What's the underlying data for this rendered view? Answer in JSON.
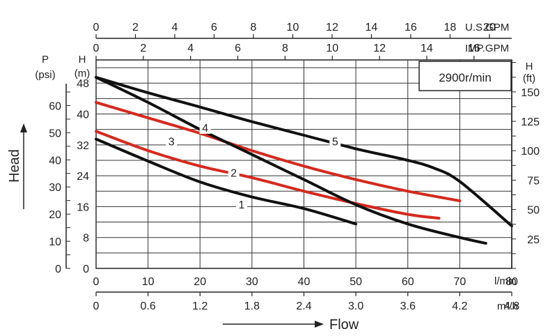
{
  "chart_data": {
    "type": "line",
    "annotation": "2900r/min",
    "axes": {
      "x_primary": {
        "unit": "l/min",
        "ticks": [
          "0",
          "10",
          "20",
          "30",
          "40",
          "50",
          "60",
          "70",
          "80"
        ],
        "range": [
          0,
          80
        ]
      },
      "x_m3h": {
        "unit": "m³/h",
        "ticks": [
          "0",
          "0.6",
          "1.2",
          "1.8",
          "2.4",
          "3.0",
          "3.6",
          "4.2",
          "4.8"
        ]
      },
      "x_usgpm": {
        "unit": "U.S.GPM",
        "ticks": [
          "0",
          "2",
          "4",
          "6",
          "8",
          "10",
          "12",
          "14",
          "16",
          "18",
          "20"
        ]
      },
      "x_impgpm": {
        "unit": "IMP.GPM",
        "ticks": [
          "0",
          "2",
          "4",
          "6",
          "8",
          "10",
          "12",
          "14",
          "16"
        ]
      },
      "y_head_m": {
        "unit_letter": "H",
        "unit": "(m)",
        "ticks": [
          "0",
          "8",
          "16",
          "24",
          "32",
          "40",
          "48"
        ],
        "range": [
          0,
          54
        ]
      },
      "y_psi": {
        "unit_letter": "P",
        "unit": "(psi)",
        "ticks": [
          "0",
          "10",
          "20",
          "30",
          "40",
          "50",
          "60"
        ]
      },
      "y_ft": {
        "unit_letter": "H",
        "unit": "(ft)",
        "ticks": [
          "25",
          "50",
          "75",
          "100",
          "125",
          "150"
        ]
      }
    },
    "xlabel": "Flow",
    "ylabel": "Head",
    "grid": true,
    "series": [
      {
        "name": "1",
        "color": "#111111",
        "label_at": [
          28,
          16.6
        ],
        "x": [
          0,
          10,
          20,
          30,
          40,
          50
        ],
        "y": [
          33.5,
          27.8,
          22.4,
          18.5,
          15.5,
          11.5
        ]
      },
      {
        "name": "2",
        "color": "#d42a1f",
        "label_at": [
          26.5,
          24.8
        ],
        "x": [
          0,
          10,
          20,
          30,
          40,
          50,
          60,
          66
        ],
        "y": [
          35.5,
          30.5,
          26.5,
          23.5,
          20,
          16.8,
          14,
          13
        ]
      },
      {
        "name": "3",
        "color": "#d42a1f",
        "label_at": [
          14.5,
          33
        ],
        "x": [
          0,
          10,
          20,
          30,
          40,
          50,
          60,
          70
        ],
        "y": [
          43,
          39,
          35,
          30.5,
          26.5,
          23,
          20,
          17.5
        ]
      },
      {
        "name": "4",
        "color": "#111111",
        "label_at": [
          21,
          36.5
        ],
        "x": [
          0,
          10,
          20,
          30,
          40,
          50,
          60,
          70,
          75
        ],
        "y": [
          49.5,
          43,
          36,
          29.5,
          23,
          16.5,
          11.5,
          8,
          6.5
        ]
      },
      {
        "name": "5",
        "color": "#111111",
        "label_at": [
          46,
          33
        ],
        "x": [
          0,
          10,
          20,
          30,
          40,
          50,
          60,
          65,
          70,
          80
        ],
        "y": [
          49.5,
          45.5,
          41.8,
          38,
          34.5,
          31,
          28,
          26,
          22.5,
          11
        ]
      }
    ]
  }
}
